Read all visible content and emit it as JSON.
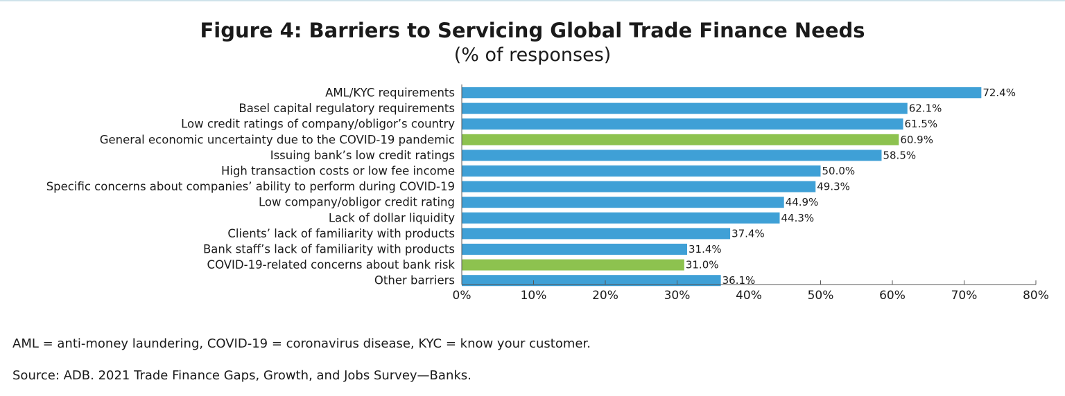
{
  "chart_data": {
    "type": "bar",
    "orientation": "horizontal",
    "title": "Figure 4: Barriers to Servicing Global Trade Finance Needs",
    "subtitle": "(% of responses)",
    "categories": [
      "AML/KYC requirements",
      "Basel capital regulatory requirements",
      "Low credit ratings of company/obligor’s country",
      "General economic uncertainty due to the COVID-19 pandemic",
      "Issuing bank’s low credit ratings",
      "High transaction costs or low fee income",
      "Specific concerns about companies’ ability to perform during COVID-19",
      "Low company/obligor credit rating",
      "Lack of dollar liquidity",
      "Clients’ lack of familiarity with products",
      "Bank staff’s lack of familiarity with products",
      "COVID-19-related concerns about bank risk",
      "Other barriers"
    ],
    "values": [
      72.4,
      62.1,
      61.5,
      60.9,
      58.5,
      50.0,
      49.3,
      44.9,
      44.3,
      37.4,
      31.4,
      31.0,
      36.1
    ],
    "value_labels": [
      "72.4%",
      "62.1%",
      "61.5%",
      "60.9%",
      "58.5%",
      "50.0%",
      "49.3%",
      "44.9%",
      "44.3%",
      "37.4%",
      "31.4%",
      "31.0%",
      "36.1%"
    ],
    "bar_colors": [
      "#3fa0d6",
      "#3fa0d6",
      "#3fa0d6",
      "#8dc24f",
      "#3fa0d6",
      "#3fa0d6",
      "#3fa0d6",
      "#3fa0d6",
      "#3fa0d6",
      "#3fa0d6",
      "#3fa0d6",
      "#8dc24f",
      "#3fa0d6"
    ],
    "xlim": [
      0,
      80
    ],
    "xticks": [
      0,
      10,
      20,
      30,
      40,
      50,
      60,
      70,
      80
    ],
    "xtick_labels": [
      "0%",
      "10%",
      "20%",
      "30%",
      "40%",
      "50%",
      "60%",
      "70%",
      "80%"
    ],
    "grid": false,
    "legend": "none"
  },
  "notes": {
    "abbreviations": "AML = anti-money laundering, COVID-19 = coronavirus disease, KYC = know your customer.",
    "source": "Source: ADB. 2021 Trade Finance Gaps, Growth, and Jobs Survey—Banks."
  }
}
